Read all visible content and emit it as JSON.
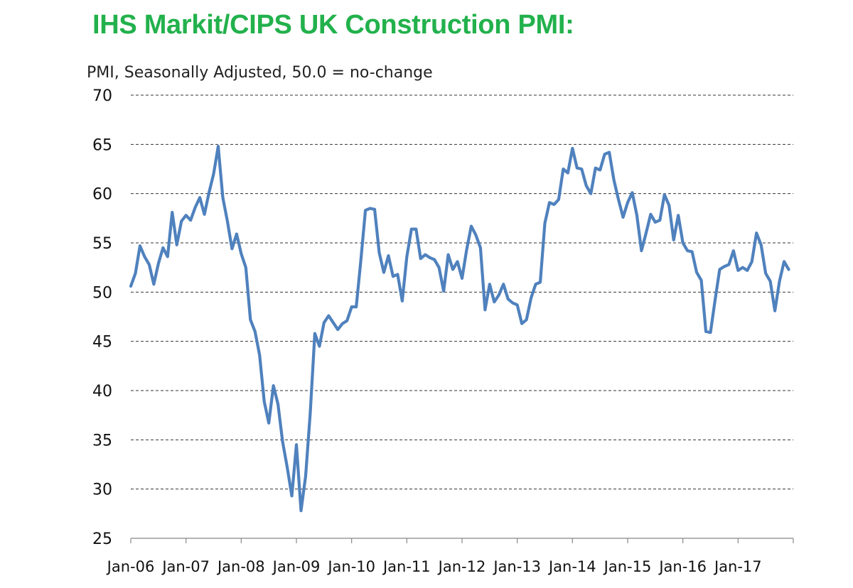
{
  "title": "IHS Markit/CIPS UK Construction PMI:",
  "subtitle": "PMI, Seasonally Adjusted, 50.0 = no-change",
  "colors": {
    "title": "#22b14c",
    "line": "#4f81bd",
    "grid": "#333333"
  },
  "chart_data": {
    "type": "line",
    "title": "IHS Markit/CIPS UK Construction PMI:",
    "ylabel": "PMI, Seasonally Adjusted, 50.0 = no-change",
    "xlabel": "",
    "ylim": [
      25,
      70
    ],
    "yticks": [
      25,
      30,
      35,
      40,
      45,
      50,
      55,
      60,
      65,
      70
    ],
    "xtick_labels": [
      "Jan-06",
      "Jan-07",
      "Jan-08",
      "Jan-09",
      "Jan-10",
      "Jan-11",
      "Jan-12",
      "Jan-13",
      "Jan-14",
      "Jan-15",
      "Jan-16",
      "Jan-17"
    ],
    "grid": "horizontal dashed",
    "start": "Jan-06",
    "frequency": "monthly",
    "series": [
      {
        "values": [
          50.6,
          51.9,
          54.7,
          53.6,
          52.8,
          50.8,
          52.9,
          54.5,
          53.6,
          58.1,
          54.8,
          57.2,
          57.8,
          57.3,
          58.6,
          59.6,
          57.9,
          60.1,
          62.0,
          64.8,
          59.6,
          57.2,
          54.4,
          55.9,
          53.9,
          52.5,
          47.2,
          46.0,
          43.6,
          38.9,
          36.7,
          40.5,
          38.6,
          34.8,
          32.2,
          29.3,
          34.5,
          27.8,
          31.3,
          37.7,
          45.8,
          44.5,
          46.9,
          47.6,
          46.9,
          46.2,
          46.8,
          47.1,
          48.5,
          48.5,
          53.2,
          58.3,
          58.5,
          58.4,
          54.0,
          52.0,
          53.7,
          51.6,
          51.8,
          49.1,
          53.6,
          56.4,
          56.4,
          53.4,
          53.8,
          53.5,
          53.3,
          52.5,
          50.1,
          53.8,
          52.3,
          53.1,
          51.4,
          54.3,
          56.7,
          55.8,
          54.5,
          48.2,
          50.8,
          49.0,
          49.7,
          50.8,
          49.3,
          48.9,
          48.7,
          46.8,
          47.2,
          49.4,
          50.8,
          51.0,
          57.0,
          59.1,
          58.9,
          59.4,
          62.5,
          62.1,
          64.6,
          62.6,
          62.5,
          60.8,
          60.0,
          62.6,
          62.4,
          64.0,
          64.2,
          61.4,
          59.4,
          57.6,
          59.1,
          60.1,
          57.8,
          54.2,
          56.0,
          57.9,
          57.1,
          57.3,
          59.9,
          58.8,
          55.3,
          57.8,
          55.0,
          54.2,
          54.1,
          52.0,
          51.2,
          46.0,
          45.9,
          49.2,
          52.3,
          52.6,
          52.8,
          54.2,
          52.2,
          52.5,
          52.2,
          53.1,
          56.0,
          54.8,
          51.9,
          51.1,
          48.1,
          51.1,
          53.1,
          52.3
        ]
      }
    ]
  }
}
